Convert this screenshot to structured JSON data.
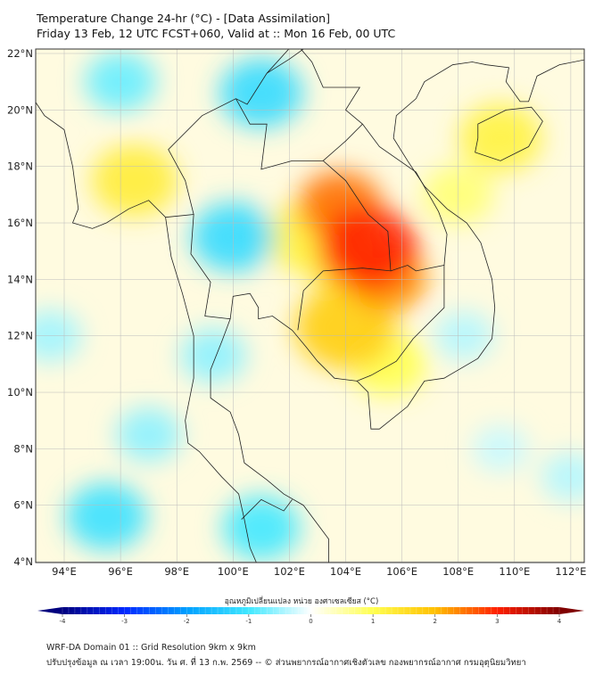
{
  "header": {
    "title": "Temperature Change 24-hr (°C) - [Data Assimilation]",
    "subtitle": "Friday 13 Feb, 12 UTC FCST+060, Valid at :: Mon 16 Feb, 00 UTC"
  },
  "map": {
    "lon_range": [
      93,
      112.5
    ],
    "lat_range": [
      4,
      22.2
    ],
    "lat_ticks": [
      {
        "v": 22,
        "label": "22°N"
      },
      {
        "v": 20,
        "label": "20°N"
      },
      {
        "v": 18,
        "label": "18°N"
      },
      {
        "v": 16,
        "label": "16°N"
      },
      {
        "v": 14,
        "label": "14°N"
      },
      {
        "v": 12,
        "label": "12°N"
      },
      {
        "v": 10,
        "label": "10°N"
      },
      {
        "v": 8,
        "label": "8°N"
      },
      {
        "v": 6,
        "label": "6°N"
      },
      {
        "v": 4,
        "label": "4°N"
      }
    ],
    "lon_ticks": [
      {
        "v": 94,
        "label": "94°E"
      },
      {
        "v": 96,
        "label": "96°E"
      },
      {
        "v": 98,
        "label": "98°E"
      },
      {
        "v": 100,
        "label": "100°E"
      },
      {
        "v": 102,
        "label": "102°E"
      },
      {
        "v": 104,
        "label": "104°E"
      },
      {
        "v": 106,
        "label": "106°E"
      },
      {
        "v": 108,
        "label": "108°E"
      },
      {
        "v": 110,
        "label": "110°E"
      },
      {
        "v": 112,
        "label": "112°E"
      }
    ],
    "anomalies": [
      {
        "lon": 104.0,
        "lat": 14.8,
        "value": 1.4
      },
      {
        "lon": 102.5,
        "lat": 15.5,
        "value": 1.2
      },
      {
        "lon": 105.5,
        "lat": 11.0,
        "value": 1.0
      },
      {
        "lon": 96.5,
        "lat": 17.5,
        "value": 1.3
      },
      {
        "lon": 109.5,
        "lat": 19.0,
        "value": 1.2
      },
      {
        "lon": 108.0,
        "lat": 17.0,
        "value": 0.8
      },
      {
        "lon": 104.0,
        "lat": 12.3,
        "value": 1.8
      },
      {
        "lon": 105.5,
        "lat": 14.0,
        "value": 2.3
      },
      {
        "lon": 103.8,
        "lat": 16.6,
        "value": 2.5
      },
      {
        "lon": 104.8,
        "lat": 15.1,
        "value": 3.0
      },
      {
        "lon": 100.0,
        "lat": 15.5,
        "value": -1.2
      },
      {
        "lon": 101.0,
        "lat": 20.6,
        "value": -1.2
      },
      {
        "lon": 96.0,
        "lat": 21.0,
        "value": -0.8
      },
      {
        "lon": 95.5,
        "lat": 5.6,
        "value": -1.1
      },
      {
        "lon": 101.0,
        "lat": 5.2,
        "value": -1.0
      },
      {
        "lon": 99.3,
        "lat": 11.3,
        "value": -0.6
      },
      {
        "lon": 97.0,
        "lat": 8.5,
        "value": -0.6
      },
      {
        "lon": 93.5,
        "lat": 12.0,
        "value": -0.5
      },
      {
        "lon": 108.2,
        "lat": 12.0,
        "value": -0.4
      },
      {
        "lon": 112.0,
        "lat": 7.0,
        "value": -0.4
      },
      {
        "lon": 109.5,
        "lat": 8.0,
        "value": -0.3
      }
    ]
  },
  "colorbar": {
    "label": "อุณหภูมิเปลี่ยนแปลง หน่วย องศาเซลเซียส (°C)",
    "min": -4,
    "max": 4,
    "ticks": [
      "-4",
      "-3",
      "-2",
      "-1",
      "0",
      "1",
      "2",
      "3",
      "4"
    ],
    "colors": [
      "#00007f",
      "#0028ff",
      "#00a0ff",
      "#40e8ff",
      "#ffffff",
      "#ffff50",
      "#ffc000",
      "#ff2000",
      "#800000"
    ]
  },
  "footer": {
    "line1": "WRF-DA Domain 01 :: Grid Resolution 9km x 9km",
    "line2": "ปรับปรุงข้อมูล ณ เวลา 19:00น. วัน ศ. ที่ 13 ก.พ. 2569 -- © ส่วนพยากรณ์อากาศเชิงตัวเลข กองพยากรณ์อากาศ กรมอุตุนิยมวิทยา"
  }
}
